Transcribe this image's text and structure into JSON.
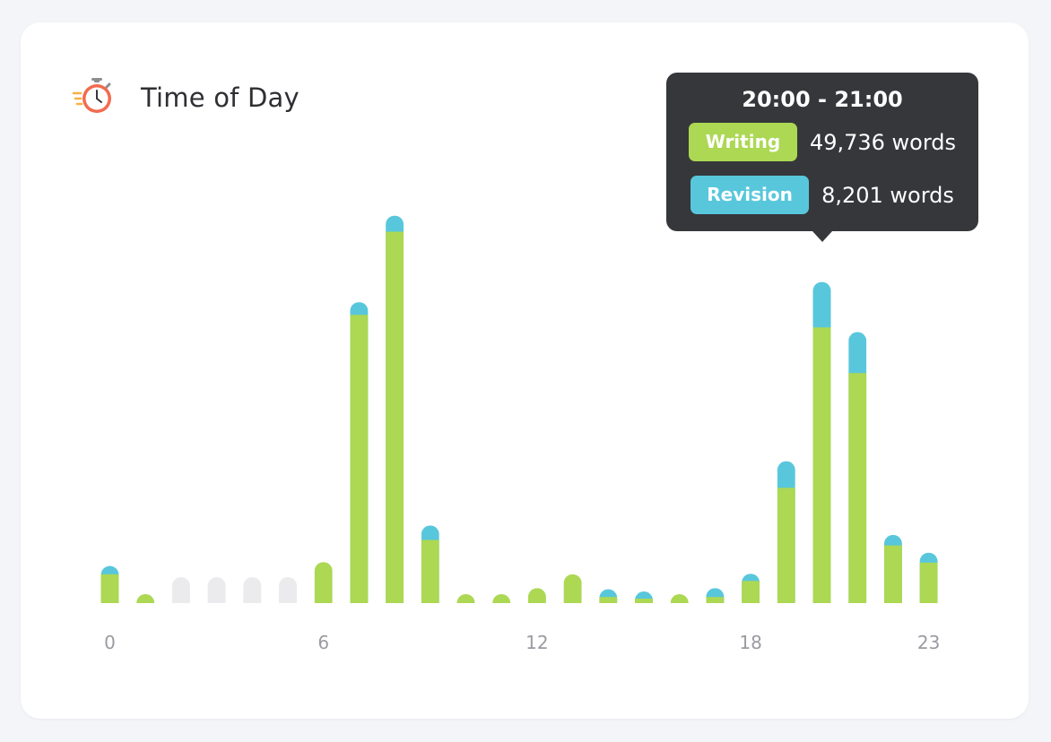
{
  "card": {
    "title": "Time of Day",
    "icon": "stopwatch-icon"
  },
  "colors": {
    "writing": "#acd853",
    "revision": "#58c7dc",
    "empty": "#ebebee",
    "axis_text": "#9a9ba1",
    "tooltip_bg": "#36373b"
  },
  "tooltip": {
    "range": "20:00 - 21:00",
    "writing_label": "Writing",
    "writing_value": "49,736 words",
    "revision_label": "Revision",
    "revision_value": "8,201 words"
  },
  "chart_data": {
    "type": "bar",
    "stacked": true,
    "categories": [
      0,
      1,
      2,
      3,
      4,
      5,
      6,
      7,
      8,
      9,
      10,
      11,
      12,
      13,
      14,
      15,
      16,
      17,
      18,
      19,
      20,
      21,
      22,
      23
    ],
    "x_tick_labels": [
      "0",
      "6",
      "12",
      "18",
      "23"
    ],
    "x_tick_values": [
      0,
      6,
      12,
      18,
      23
    ],
    "series": [
      {
        "name": "Writing",
        "values": [
          5200,
          1400,
          0,
          0,
          0,
          0,
          7400,
          52000,
          67000,
          11400,
          1400,
          500,
          2700,
          5200,
          1100,
          800,
          500,
          1100,
          4000,
          20800,
          49736,
          41500,
          10400,
          7300
        ]
      },
      {
        "name": "Revision",
        "values": [
          1500,
          0,
          0,
          0,
          0,
          0,
          0,
          2300,
          2900,
          2600,
          0,
          0,
          0,
          0,
          1400,
          1300,
          0,
          1600,
          1300,
          4800,
          8201,
          7400,
          1900,
          1800
        ]
      }
    ],
    "ylim": [
      0,
      70000
    ],
    "grid": false,
    "legend": "none"
  }
}
